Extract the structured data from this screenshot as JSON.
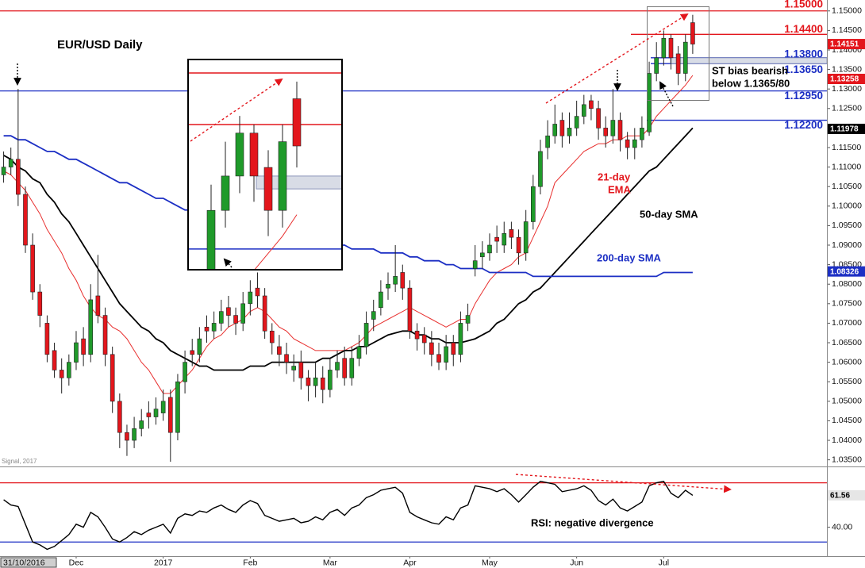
{
  "chart_data": [
    {
      "type": "candlestick",
      "title": "EUR/USD Daily",
      "source": "Signal, 2017",
      "categories": [
        "31/10/2016",
        null,
        null,
        null,
        null,
        null,
        null,
        null,
        null,
        null,
        "Dec",
        null,
        null,
        null,
        null,
        null,
        null,
        null,
        null,
        null,
        null,
        null,
        "2017",
        null,
        null,
        null,
        null,
        null,
        null,
        null,
        null,
        null,
        null,
        null,
        "Feb",
        null,
        null,
        null,
        null,
        null,
        null,
        null,
        null,
        null,
        null,
        "Mar",
        null,
        null,
        null,
        null,
        null,
        null,
        null,
        null,
        null,
        null,
        "Apr",
        null,
        null,
        null,
        null,
        null,
        null,
        null,
        null,
        null,
        null,
        "May",
        null,
        null,
        null,
        null,
        null,
        null,
        null,
        null,
        null,
        null,
        null,
        "Jun",
        null,
        null,
        null,
        null,
        null,
        null,
        null,
        null,
        null,
        null,
        null,
        "Jul",
        null,
        null,
        null,
        null
      ],
      "open": [
        1.108,
        1.11,
        1.112,
        1.103,
        1.09,
        1.078,
        1.07,
        1.063,
        1.058,
        1.056,
        1.06,
        1.066,
        1.062,
        1.077,
        1.072,
        1.062,
        1.05,
        1.042,
        1.04,
        1.043,
        1.047,
        1.046,
        1.047,
        1.051,
        1.042,
        1.055,
        1.063,
        1.062,
        1.069,
        1.068,
        1.07,
        1.074,
        1.072,
        1.07,
        1.075,
        1.079,
        1.077,
        1.068,
        1.064,
        1.062,
        1.058,
        1.06,
        1.056,
        1.054,
        1.056,
        1.053,
        1.058,
        1.061,
        1.056,
        1.061,
        1.064,
        1.071,
        1.074,
        1.079,
        1.08,
        1.083,
        1.079,
        1.068,
        1.067,
        1.065,
        1.062,
        1.06,
        1.065,
        1.062,
        1.07,
        1.084,
        1.087,
        1.088,
        1.092,
        1.09,
        1.094,
        1.092,
        1.088,
        1.096,
        1.105,
        1.115,
        1.118,
        1.122,
        1.118,
        1.12,
        1.123,
        1.127,
        1.125,
        1.12,
        1.118,
        1.122,
        1.117,
        1.115,
        1.117,
        1.119,
        1.134,
        1.138,
        1.143,
        1.139,
        1.134,
        1.147
      ],
      "high": [
        1.114,
        1.115,
        1.13,
        1.105,
        1.093,
        1.08,
        1.072,
        1.065,
        1.061,
        1.062,
        1.068,
        1.069,
        1.08,
        1.0875,
        1.074,
        1.064,
        1.052,
        1.044,
        1.046,
        1.048,
        1.05,
        1.051,
        1.053,
        1.053,
        1.057,
        1.063,
        1.066,
        1.069,
        1.072,
        1.073,
        1.076,
        1.077,
        1.074,
        1.078,
        1.081,
        1.083,
        1.079,
        1.07,
        1.067,
        1.065,
        1.062,
        1.063,
        1.058,
        1.06,
        1.059,
        1.061,
        1.063,
        1.064,
        1.064,
        1.067,
        1.073,
        1.076,
        1.081,
        1.083,
        1.09,
        1.085,
        1.081,
        1.07,
        1.069,
        1.068,
        1.065,
        1.067,
        1.067,
        1.073,
        1.075,
        1.09,
        1.091,
        1.093,
        1.095,
        1.096,
        1.096,
        1.094,
        1.099,
        1.108,
        1.117,
        1.122,
        1.126,
        1.124,
        1.124,
        1.127,
        1.1285,
        1.1285,
        1.127,
        1.123,
        1.13,
        1.124,
        1.119,
        1.12,
        1.123,
        1.137,
        1.142,
        1.145,
        1.144,
        1.141,
        1.144,
        1.149
      ],
      "low": [
        1.106,
        1.108,
        1.1,
        1.088,
        1.076,
        1.069,
        1.06,
        1.056,
        1.052,
        1.054,
        1.058,
        1.059,
        1.06,
        1.07,
        1.059,
        1.047,
        1.038,
        1.036,
        1.038,
        1.041,
        1.043,
        1.044,
        1.045,
        1.0345,
        1.04,
        1.052,
        1.059,
        1.06,
        1.065,
        1.066,
        1.068,
        1.069,
        1.067,
        1.068,
        1.072,
        1.074,
        1.066,
        1.062,
        1.059,
        1.057,
        1.055,
        1.053,
        1.05,
        1.051,
        1.0495,
        1.051,
        1.056,
        1.054,
        1.054,
        1.059,
        1.062,
        1.068,
        1.072,
        1.076,
        1.078,
        1.076,
        1.066,
        1.063,
        1.062,
        1.059,
        1.058,
        1.058,
        1.059,
        1.06,
        1.068,
        1.082,
        1.084,
        1.086,
        1.088,
        1.088,
        1.089,
        1.085,
        1.086,
        1.094,
        1.103,
        1.112,
        1.116,
        1.115,
        1.116,
        1.118,
        1.121,
        1.122,
        1.117,
        1.115,
        1.116,
        1.114,
        1.112,
        1.112,
        1.115,
        1.118,
        1.132,
        1.136,
        1.135,
        1.131,
        1.132,
        1.139
      ],
      "close": [
        1.11,
        1.112,
        1.103,
        1.09,
        1.078,
        1.072,
        1.062,
        1.058,
        1.056,
        1.06,
        1.065,
        1.062,
        1.076,
        1.072,
        1.062,
        1.05,
        1.042,
        1.04,
        1.043,
        1.045,
        1.046,
        1.048,
        1.05,
        1.042,
        1.055,
        1.06,
        1.062,
        1.066,
        1.068,
        1.07,
        1.073,
        1.072,
        1.07,
        1.075,
        1.078,
        1.077,
        1.068,
        1.065,
        1.062,
        1.06,
        1.059,
        1.056,
        1.054,
        1.056,
        1.053,
        1.058,
        1.06,
        1.056,
        1.061,
        1.064,
        1.07,
        1.073,
        1.078,
        1.08,
        1.082,
        1.079,
        1.068,
        1.066,
        1.065,
        1.062,
        1.06,
        1.064,
        1.062,
        1.07,
        1.072,
        1.086,
        1.088,
        1.09,
        1.091,
        1.093,
        1.092,
        1.088,
        1.096,
        1.105,
        1.114,
        1.118,
        1.121,
        1.118,
        1.12,
        1.123,
        1.126,
        1.125,
        1.12,
        1.118,
        1.122,
        1.117,
        1.115,
        1.117,
        1.12,
        1.134,
        1.138,
        1.143,
        1.138,
        1.134,
        1.142,
        1.1415
      ],
      "up_color": "#1f9a2a",
      "down_color": "#e3161c",
      "overlays": [
        {
          "label": [
            "21-day",
            "EMA"
          ],
          "color": "#e8302f",
          "width": 1,
          "values": [
            1.109,
            1.108,
            1.106,
            1.104,
            1.101,
            1.098,
            1.094,
            1.091,
            1.088,
            1.084,
            1.081,
            1.077,
            1.074,
            1.072,
            1.071,
            1.069,
            1.068,
            1.066,
            1.063,
            1.06,
            1.058,
            1.055,
            1.052,
            1.052,
            1.054,
            1.056,
            1.058,
            1.061,
            1.064,
            1.066,
            1.067,
            1.069,
            1.07,
            1.071,
            1.073,
            1.074,
            1.073,
            1.071,
            1.069,
            1.068,
            1.066,
            1.065,
            1.064,
            1.063,
            1.063,
            1.063,
            1.063,
            1.063,
            1.064,
            1.065,
            1.067,
            1.069,
            1.07,
            1.071,
            1.072,
            1.073,
            1.074,
            1.073,
            1.072,
            1.071,
            1.07,
            1.069,
            1.07,
            1.071,
            1.071,
            1.075,
            1.078,
            1.081,
            1.083,
            1.084,
            1.085,
            1.087,
            1.088,
            1.092,
            1.096,
            1.1,
            1.106,
            1.108,
            1.11,
            1.112,
            1.114,
            1.115,
            1.116,
            1.116,
            1.117,
            1.117,
            1.118,
            1.118,
            1.118,
            1.12,
            1.123,
            1.125,
            1.127,
            1.129,
            1.131,
            1.1335
          ]
        },
        {
          "label": [
            "50-day SMA"
          ],
          "color": "#000000",
          "width": 1.8,
          "values": [
            1.113,
            1.112,
            1.11,
            1.109,
            1.107,
            1.106,
            1.103,
            1.101,
            1.098,
            1.096,
            1.093,
            1.09,
            1.087,
            1.084,
            1.081,
            1.078,
            1.075,
            1.073,
            1.071,
            1.069,
            1.068,
            1.066,
            1.065,
            1.063,
            1.062,
            1.061,
            1.06,
            1.059,
            1.059,
            1.058,
            1.058,
            1.058,
            1.058,
            1.058,
            1.059,
            1.059,
            1.059,
            1.06,
            1.06,
            1.06,
            1.06,
            1.06,
            1.06,
            1.06,
            1.061,
            1.061,
            1.062,
            1.063,
            1.063,
            1.064,
            1.064,
            1.065,
            1.066,
            1.067,
            1.0675,
            1.068,
            1.068,
            1.067,
            1.067,
            1.066,
            1.066,
            1.065,
            1.065,
            1.065,
            1.0655,
            1.066,
            1.067,
            1.068,
            1.07,
            1.071,
            1.073,
            1.075,
            1.076,
            1.078,
            1.079,
            1.081,
            1.083,
            1.085,
            1.087,
            1.089,
            1.091,
            1.093,
            1.095,
            1.097,
            1.099,
            1.101,
            1.103,
            1.105,
            1.107,
            1.109,
            1.11,
            1.112,
            1.114,
            1.116,
            1.118,
            1.12
          ]
        },
        {
          "label": [
            "200-day SMA"
          ],
          "color": "#1c2fc4",
          "width": 1.8,
          "values": [
            1.118,
            1.118,
            1.117,
            1.117,
            1.116,
            1.115,
            1.114,
            1.114,
            1.113,
            1.112,
            1.112,
            1.111,
            1.11,
            1.109,
            1.108,
            1.107,
            1.106,
            1.106,
            1.105,
            1.104,
            1.103,
            1.102,
            1.102,
            1.101,
            1.1,
            1.099,
            1.099,
            1.098,
            1.097,
            1.096,
            1.096,
            1.095,
            1.094,
            1.094,
            1.093,
            1.093,
            1.093,
            1.092,
            1.092,
            1.092,
            1.092,
            1.091,
            1.091,
            1.091,
            1.091,
            1.09,
            1.09,
            1.09,
            1.089,
            1.089,
            1.089,
            1.089,
            1.088,
            1.088,
            1.088,
            1.088,
            1.087,
            1.087,
            1.086,
            1.086,
            1.086,
            1.085,
            1.085,
            1.084,
            1.084,
            1.084,
            1.084,
            1.083,
            1.083,
            1.083,
            1.083,
            1.083,
            1.083,
            1.082,
            1.082,
            1.082,
            1.082,
            1.082,
            1.082,
            1.082,
            1.082,
            1.082,
            1.082,
            1.082,
            1.082,
            1.082,
            1.082,
            1.082,
            1.082,
            1.082,
            1.082,
            1.083,
            1.083,
            1.083,
            1.083,
            1.083
          ]
        }
      ],
      "ylim": [
        1.0333,
        1.1528
      ],
      "yticks": [
        {
          "value": 1.035,
          "label": "1.03500"
        },
        {
          "value": 1.04,
          "label": "1.04000"
        },
        {
          "value": 1.045,
          "label": "1.04500"
        },
        {
          "value": 1.05,
          "label": "1.05000"
        },
        {
          "value": 1.055,
          "label": "1.05500"
        },
        {
          "value": 1.06,
          "label": "1.06000"
        },
        {
          "value": 1.065,
          "label": "1.06500"
        },
        {
          "value": 1.07,
          "label": "1.07000"
        },
        {
          "value": 1.075,
          "label": "1.07500"
        },
        {
          "value": 1.08,
          "label": "1.08000"
        },
        {
          "value": 1.085,
          "label": "1.08500"
        },
        {
          "value": 1.09,
          "label": "1.09000"
        },
        {
          "value": 1.095,
          "label": "1.09500"
        },
        {
          "value": 1.1,
          "label": "1.10000"
        },
        {
          "value": 1.105,
          "label": "1.10500"
        },
        {
          "value": 1.11,
          "label": "1.11000"
        },
        {
          "value": 1.115,
          "label": "1.11500"
        },
        {
          "value": 1.12,
          "label": "1.12000"
        },
        {
          "value": 1.125,
          "label": "1.12500"
        },
        {
          "value": 1.13,
          "label": "1.13000"
        },
        {
          "value": 1.135,
          "label": "1.13500"
        },
        {
          "value": 1.14,
          "label": "1.14000"
        },
        {
          "value": 1.145,
          "label": "1.14500"
        },
        {
          "value": 1.15,
          "label": "1.15000"
        }
      ],
      "levels": [
        {
          "value": 1.15,
          "label": "1.15000",
          "color": "#e3161c"
        },
        {
          "value": 1.144,
          "label": "1.14400",
          "color": "#e3161c"
        },
        {
          "value": 1.138,
          "label": "1.13800",
          "color": "#1c2fc4"
        },
        {
          "value": 1.1365,
          "label": "1.13650",
          "color": "#1c2fc4"
        },
        {
          "value": 1.1295,
          "label": "1.12950",
          "color": "#1c2fc4"
        },
        {
          "value": 1.122,
          "label": "1.12200",
          "color": "#1c2fc4"
        }
      ],
      "value_tags": [
        {
          "value": 1.14151,
          "label": "1.14151",
          "color": "#e3161c"
        },
        {
          "value": 1.13258,
          "label": "1.13258",
          "color": "#e3161c"
        },
        {
          "value": 1.11978,
          "label": "1.11978",
          "color": "#000000"
        },
        {
          "value": 1.08326,
          "label": "1.08326",
          "color": "#1c2fc4"
        }
      ],
      "annotations": [
        "ST bias bearish",
        "below 1.1365/80"
      ]
    },
    {
      "type": "line",
      "color": "#000000",
      "values": [
        58.6,
        55,
        54,
        42,
        30,
        28,
        25,
        27,
        31,
        35,
        42,
        40,
        50,
        47,
        40,
        32,
        30,
        33,
        37,
        35,
        38,
        40,
        42,
        36,
        46,
        49,
        48,
        51,
        50,
        53,
        55,
        52,
        50,
        55,
        58,
        56,
        48,
        46,
        44,
        45,
        46,
        43,
        44,
        47,
        45,
        50,
        52,
        48,
        53,
        55,
        60,
        62,
        65,
        66,
        67,
        63,
        50,
        47,
        45,
        43,
        42,
        47,
        45,
        53,
        55,
        68,
        67,
        66,
        64,
        66,
        62,
        57,
        62,
        67,
        71,
        70,
        69,
        64,
        65,
        66,
        68,
        65,
        58,
        55,
        59,
        53,
        51,
        54,
        57,
        68,
        70,
        71,
        63,
        60,
        65,
        61.56
      ],
      "ylim": [
        21,
        80
      ],
      "yticks": [
        {
          "value": 40,
          "label": "40.00"
        }
      ],
      "levels": [
        {
          "value": 70,
          "color": "#e3161c"
        },
        {
          "value": 30,
          "color": "#1c2fc4"
        }
      ],
      "value_tags": [
        {
          "value": 61.56,
          "label": "61.56",
          "color": "#e6e6e6"
        }
      ],
      "annotation": "RSI: negative divergence"
    }
  ]
}
